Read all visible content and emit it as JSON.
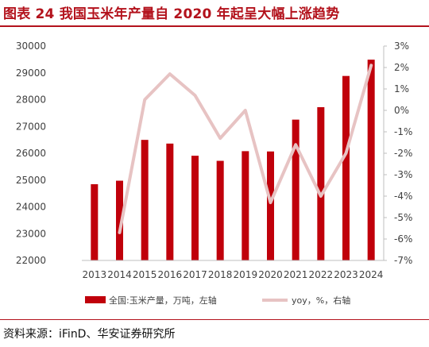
{
  "title": "图表 24 我国玉米年产量自 2020 年起呈大幅上涨趋势",
  "source": "资料来源：iFinD、华安证券研究所",
  "colors": {
    "bar": "#c0000b",
    "line": "#e7c3c3",
    "title": "#b3121c",
    "axis_text": "#404040",
    "axis_line": "#bfbfbf"
  },
  "chart_data": {
    "type": "bar+line",
    "categories": [
      "2013",
      "2014",
      "2015",
      "2016",
      "2017",
      "2018",
      "2019",
      "2020",
      "2021",
      "2022",
      "2023",
      "2024"
    ],
    "series": [
      {
        "name": "全国:玉米产量，万吨，左轴",
        "type": "bar",
        "axis": "left",
        "values": [
          24845,
          24976,
          26499,
          26361,
          25907,
          25717,
          26078,
          26067,
          27255,
          27720,
          28884,
          29492
        ]
      },
      {
        "name": "yoy，%，右轴",
        "type": "line",
        "axis": "right",
        "values": [
          null,
          -5.7,
          0.5,
          1.7,
          0.7,
          -1.3,
          0.0,
          -4.3,
          -1.6,
          -4.0,
          -2.0,
          2.1
        ]
      }
    ],
    "left_axis": {
      "min": 22000,
      "max": 30000,
      "ticks": [
        "22000",
        "23000",
        "24000",
        "25000",
        "26000",
        "27000",
        "28000",
        "29000",
        "30000"
      ]
    },
    "right_axis": {
      "min": -7,
      "max": 3,
      "ticks": [
        "-7%",
        "-6%",
        "-5%",
        "-4%",
        "-3%",
        "-2%",
        "-1%",
        "0%",
        "1%",
        "2%",
        "3%"
      ]
    },
    "grid": false,
    "legend": "bottom"
  }
}
